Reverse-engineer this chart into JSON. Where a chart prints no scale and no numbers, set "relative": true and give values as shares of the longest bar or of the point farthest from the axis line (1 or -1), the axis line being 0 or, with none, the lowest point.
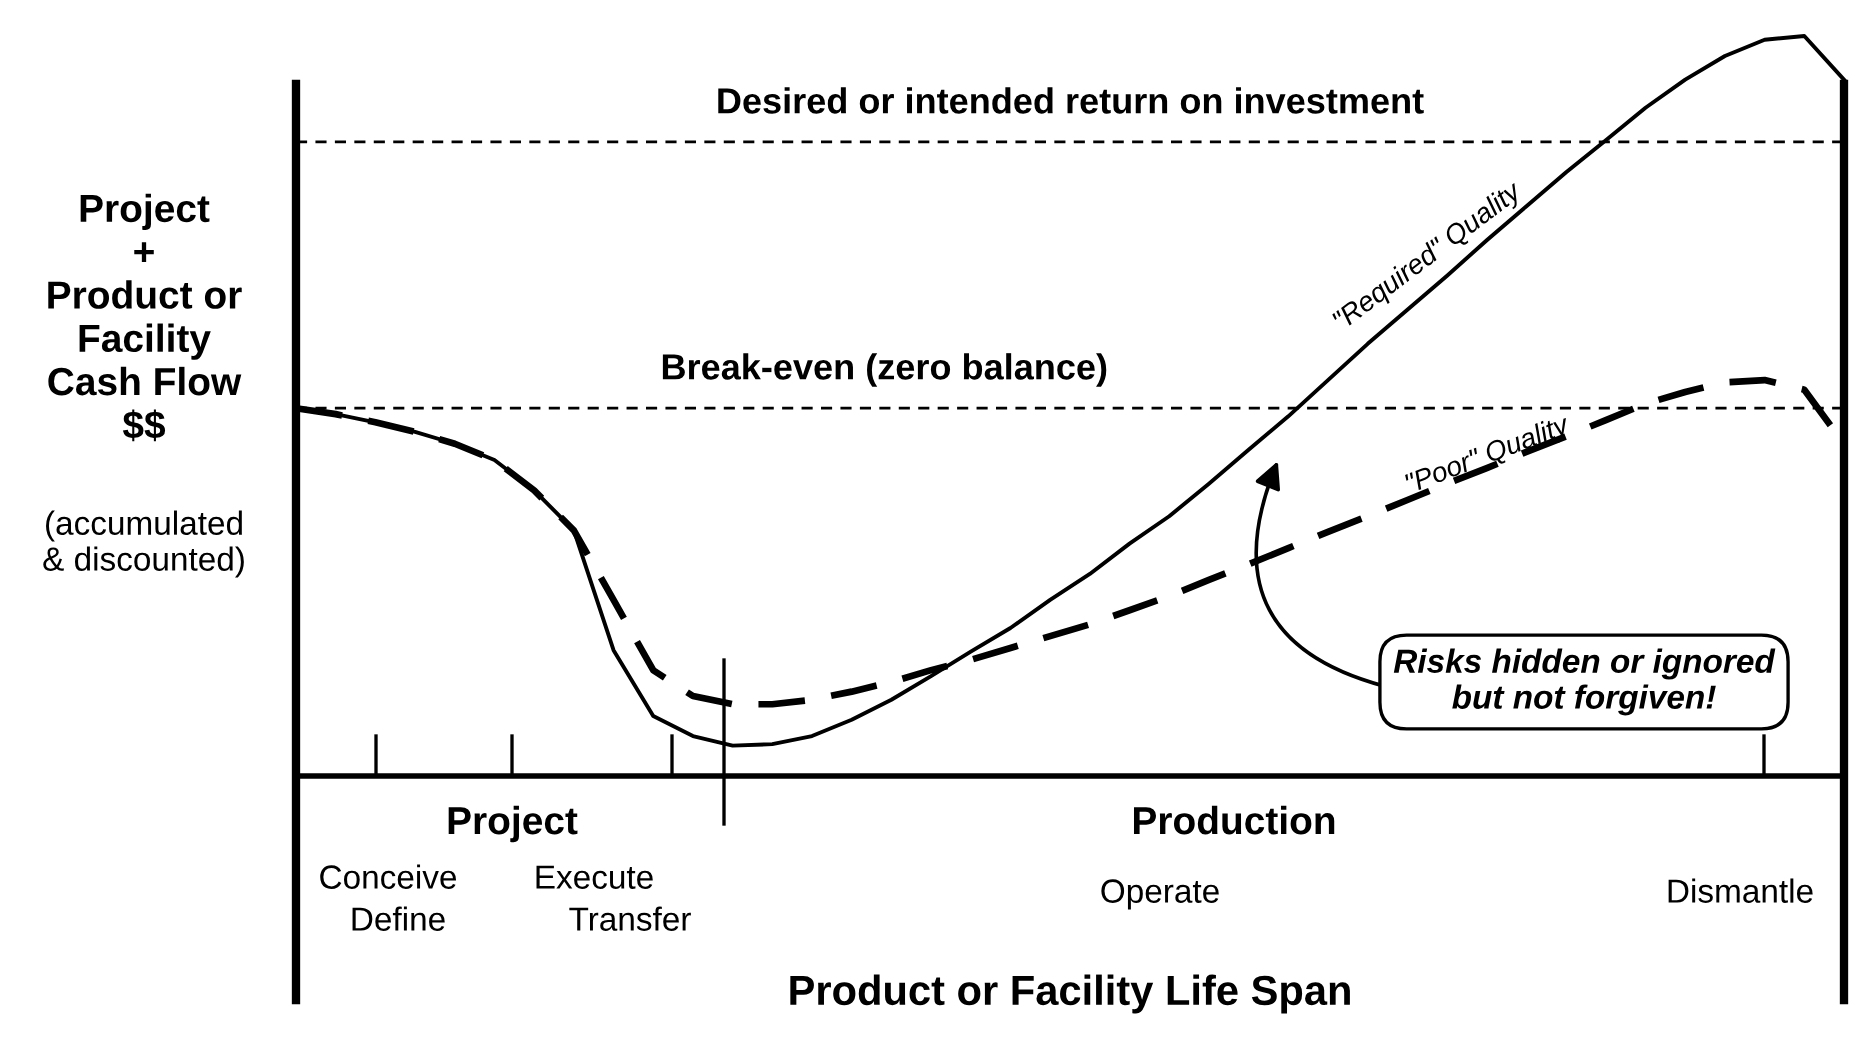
{
  "chart_data": {
    "type": "line",
    "relative": true,
    "xlabel": "Product or Facility Life Span",
    "ylabel": "Project\n+\nProduct or\nFacility\nCash Flow\n$$",
    "categories": [
      null,
      null,
      null,
      null,
      null,
      null,
      null,
      null,
      null,
      null,
      null,
      null,
      null,
      null,
      null,
      null,
      null,
      null,
      null,
      null,
      null,
      null,
      null,
      null,
      null,
      null,
      null,
      null,
      null,
      null,
      null,
      null,
      null,
      null,
      null,
      null,
      null,
      null,
      null,
      null
    ],
    "series": [
      {
        "name": "\"Required\" Quality",
        "color": "#000000",
        "line_style": "solid",
        "values": [
          0.497,
          0.489,
          0.478,
          0.465,
          0.449,
          0.427,
          0.386,
          0.332,
          0.17,
          0.081,
          0.054,
          0.041,
          0.043,
          0.054,
          0.076,
          0.103,
          0.135,
          0.168,
          0.2,
          0.238,
          0.273,
          0.314,
          0.351,
          0.395,
          0.441,
          0.486,
          0.535,
          0.584,
          0.63,
          0.676,
          0.724,
          0.77,
          0.816,
          0.859,
          0.903,
          0.941,
          0.973,
          0.995,
          1.0,
          0.941
        ]
      },
      {
        "name": "\"Poor\" Quality",
        "color": "#000000",
        "line_style": "dashed",
        "values": [
          0.497,
          0.489,
          0.478,
          0.465,
          0.449,
          0.427,
          0.386,
          0.332,
          0.238,
          0.143,
          0.108,
          0.097,
          0.097,
          0.103,
          0.114,
          0.127,
          0.143,
          0.157,
          0.173,
          0.189,
          0.205,
          0.224,
          0.243,
          0.265,
          0.286,
          0.308,
          0.33,
          0.351,
          0.373,
          0.395,
          0.416,
          0.438,
          0.459,
          0.481,
          0.503,
          0.519,
          0.532,
          0.535,
          0.522,
          0.449
        ]
      }
    ],
    "ref_lines": [
      {
        "axis": "y",
        "value": 0.857,
        "label": "Desired or intended return on investment",
        "color": "#000000",
        "line_style": "dashed"
      },
      {
        "axis": "y",
        "value": 0.497,
        "label": "Break-even (zero balance)",
        "color": "#000000",
        "line_style": "dashed"
      }
    ],
    "annotations": [
      "(accumulated\n& discounted)",
      "Project",
      "Production",
      "Conceive",
      "Define",
      "Execute",
      "Transfer",
      "Operate",
      "Dismantle",
      "Risks hidden or ignored\nbut not forgiven!"
    ],
    "legend": false,
    "marker": "none"
  }
}
